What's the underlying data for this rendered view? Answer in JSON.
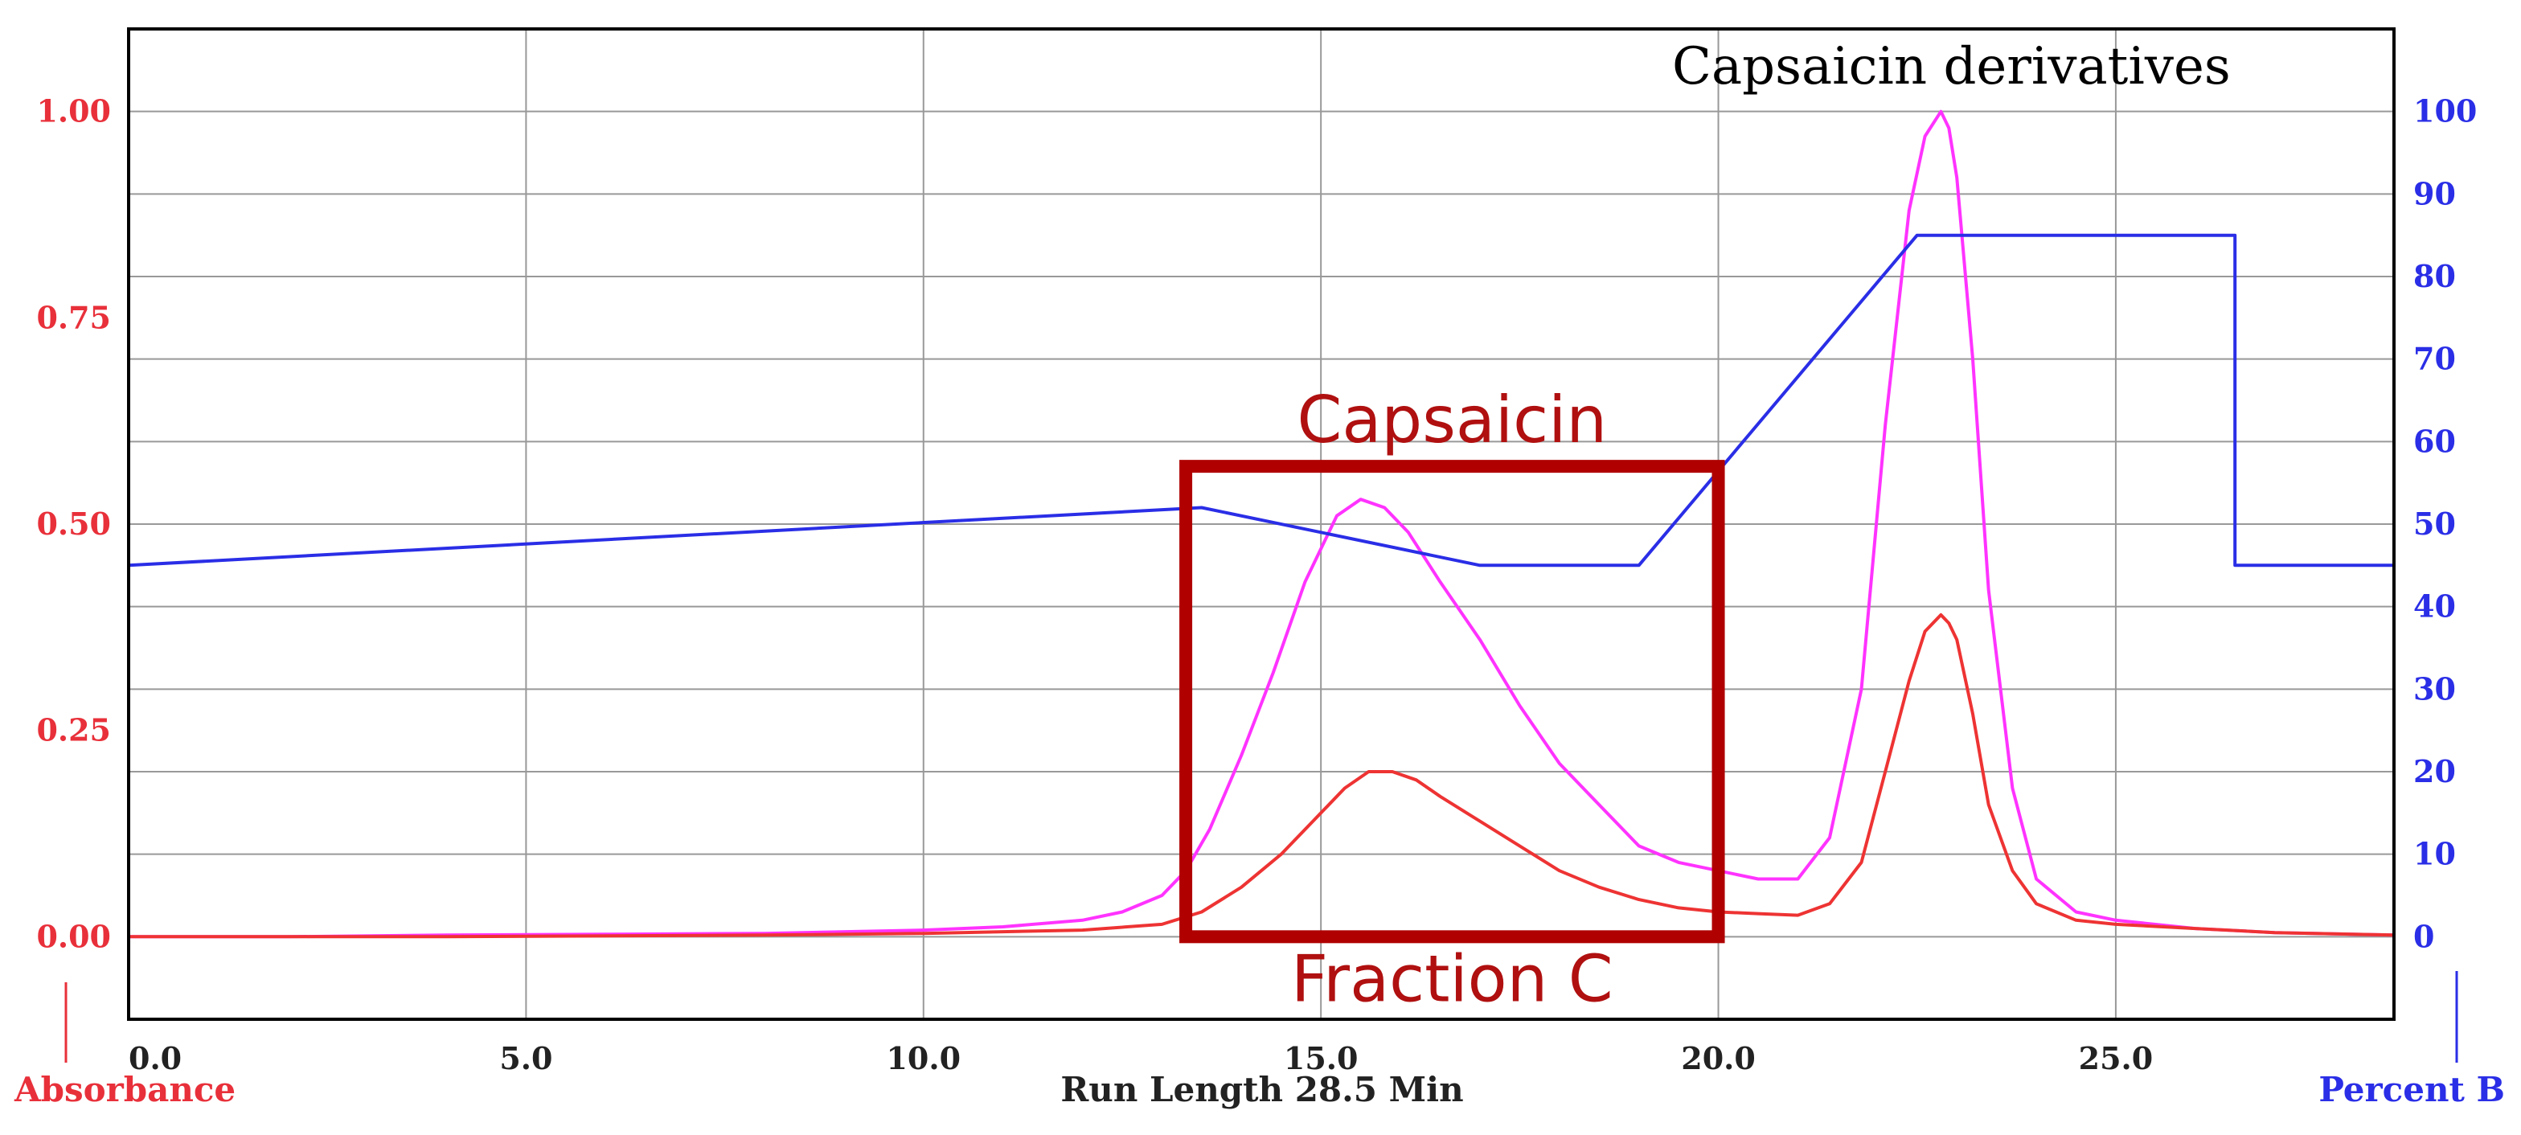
{
  "chart_data": {
    "type": "line",
    "title": "",
    "xlabel": "Run Length 28.5 Min",
    "ylabel_left": "Absorbance",
    "ylabel_right": "Percent B",
    "xlim": [
      0,
      28.5
    ],
    "ylim_left": [
      -0.1,
      1.1
    ],
    "ylim_right": [
      -10,
      110
    ],
    "grid": true,
    "x_ticks": [
      0,
      5,
      10,
      15,
      20,
      25
    ],
    "x_tick_labels": [
      "0.0",
      "5.0",
      "10.0",
      "15.0",
      "20.0",
      "25.0"
    ],
    "y_left_ticks": [
      0,
      0.25,
      0.5,
      0.75,
      1.0
    ],
    "y_left_tick_labels": [
      "0.00",
      "0.25",
      "0.50",
      "0.75",
      "1.00"
    ],
    "y_right_ticks": [
      0,
      10,
      20,
      30,
      40,
      50,
      60,
      70,
      80,
      90,
      100
    ],
    "y_right_tick_labels": [
      "0",
      "10",
      "20",
      "30",
      "40",
      "50",
      "60",
      "70",
      "80",
      "90",
      "100"
    ],
    "series": [
      {
        "axis": "left",
        "color": "#ff33ff",
        "x": [
          0,
          2,
          4,
          6,
          8,
          10,
          11,
          12,
          12.5,
          13,
          13.3,
          13.6,
          14,
          14.4,
          14.8,
          15.2,
          15.5,
          15.8,
          16.1,
          16.5,
          17,
          17.5,
          18,
          18.5,
          19,
          19.5,
          20,
          20.5,
          21,
          21.4,
          21.8,
          22.1,
          22.4,
          22.6,
          22.8,
          22.9,
          23.0,
          23.2,
          23.4,
          23.7,
          24,
          24.5,
          25,
          26,
          27,
          28.5
        ],
        "y": [
          0.0,
          0.0,
          0.002,
          0.003,
          0.004,
          0.008,
          0.012,
          0.02,
          0.03,
          0.05,
          0.08,
          0.13,
          0.22,
          0.32,
          0.43,
          0.51,
          0.53,
          0.52,
          0.49,
          0.43,
          0.36,
          0.28,
          0.21,
          0.16,
          0.11,
          0.09,
          0.08,
          0.07,
          0.07,
          0.12,
          0.3,
          0.62,
          0.88,
          0.97,
          1.0,
          0.98,
          0.92,
          0.7,
          0.42,
          0.18,
          0.07,
          0.03,
          0.02,
          0.01,
          0.005,
          0.002
        ]
      },
      {
        "axis": "left",
        "color": "#ee3333",
        "x": [
          0,
          4,
          8,
          10,
          12,
          13,
          13.5,
          14,
          14.5,
          15,
          15.3,
          15.6,
          15.9,
          16.2,
          16.5,
          17,
          17.5,
          18,
          18.5,
          19,
          19.5,
          20,
          20.5,
          21,
          21.4,
          21.8,
          22.1,
          22.4,
          22.6,
          22.8,
          22.9,
          23.0,
          23.2,
          23.4,
          23.7,
          24,
          24.5,
          25,
          26,
          27,
          28.5
        ],
        "y": [
          0.0,
          0.0,
          0.002,
          0.004,
          0.008,
          0.015,
          0.03,
          0.06,
          0.1,
          0.15,
          0.18,
          0.2,
          0.2,
          0.19,
          0.17,
          0.14,
          0.11,
          0.08,
          0.06,
          0.045,
          0.035,
          0.03,
          0.028,
          0.026,
          0.04,
          0.09,
          0.2,
          0.31,
          0.37,
          0.39,
          0.38,
          0.36,
          0.27,
          0.16,
          0.08,
          0.04,
          0.02,
          0.015,
          0.01,
          0.005,
          0.002
        ]
      },
      {
        "axis": "right",
        "color": "#2a2ee6",
        "x": [
          0,
          13.5,
          17,
          19,
          22.5,
          26.5,
          26.5,
          28.5
        ],
        "y": [
          45,
          52,
          45,
          45,
          85,
          85,
          45,
          45
        ]
      }
    ],
    "annotations": {
      "peak2": "Capsaicin derivatives",
      "box_top": "Capsaicin",
      "box_bottom": "Fraction C"
    },
    "highlight_box": {
      "x_range": [
        13.3,
        20.0
      ],
      "y_range_left": [
        0.0,
        0.57
      ],
      "color": "#b00000"
    }
  }
}
